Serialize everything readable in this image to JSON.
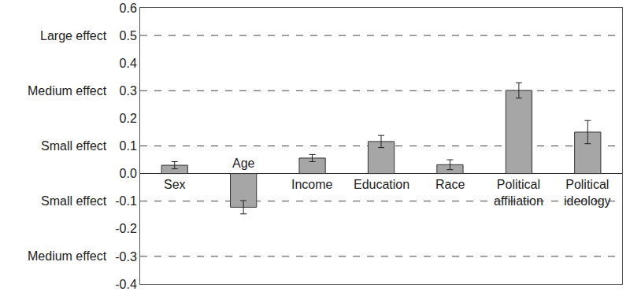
{
  "chart_data": {
    "type": "bar",
    "categories": [
      "Sex",
      "Age",
      "Income",
      "Education",
      "Race",
      "Political affiliation",
      "Political ideology"
    ],
    "values": [
      0.03,
      -0.122,
      0.056,
      0.116,
      0.032,
      0.301,
      0.15
    ],
    "errors": [
      0.013,
      0.024,
      0.013,
      0.022,
      0.018,
      0.028,
      0.042
    ],
    "color": "#a6a6a6",
    "ylim": [
      -0.4,
      0.6
    ],
    "yticks": [
      -0.4,
      -0.3,
      -0.2,
      -0.1,
      {
        "value": 0,
        "label": "0.0"
      },
      0.1,
      0.2,
      0.3,
      0.4,
      0.5,
      0.6
    ],
    "grid": false,
    "annotations": [
      {
        "text": "Large effect",
        "y": 0.5
      },
      {
        "text": "Medium effect",
        "y": 0.3
      },
      {
        "text": "Small effect",
        "y": 0.1
      },
      {
        "text": "Small effect",
        "y": -0.1
      },
      {
        "text": "Medium effect",
        "y": -0.3
      }
    ]
  }
}
